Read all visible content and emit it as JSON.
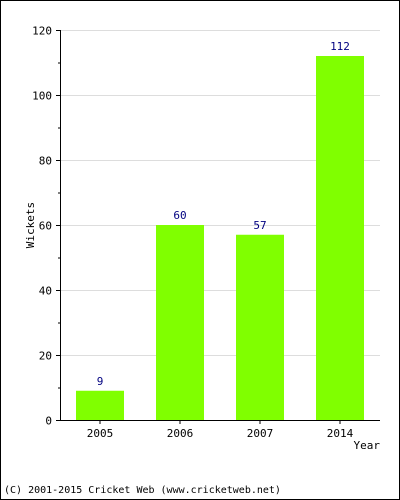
{
  "chart_data": {
    "type": "bar",
    "categories": [
      "2005",
      "2006",
      "2007",
      "2014"
    ],
    "values": [
      9,
      60,
      57,
      112
    ],
    "data_labels": [
      "9",
      "60",
      "57",
      "112"
    ],
    "xlabel": "Year",
    "ylabel": "Wickets",
    "ylim": [
      0,
      120
    ],
    "yticks": [
      0,
      20,
      40,
      60,
      80,
      100,
      120
    ],
    "ytick_labels": [
      "0",
      "20",
      "40",
      "60",
      "80",
      "100",
      "120"
    ],
    "grid": true,
    "legend": "none",
    "colors": {
      "bar": "#80ff00",
      "data_label": "#000080",
      "grid": "#dddddd",
      "axis": "#000000"
    }
  },
  "footer": {
    "copyright": "(C) 2001-2015 Cricket Web (www.cricketweb.net)"
  }
}
